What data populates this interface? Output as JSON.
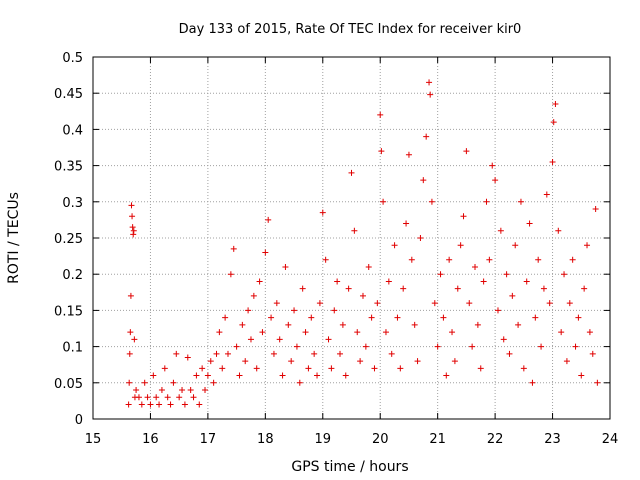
{
  "chart_data": {
    "type": "scatter",
    "title": "Day 133 of 2015, Rate Of TEC Index for receiver kir0",
    "xlabel": "GPS time / hours",
    "ylabel": "ROTI / TECUs",
    "xlim": [
      15,
      24
    ],
    "ylim": [
      0,
      0.5
    ],
    "x_ticks": [
      "15",
      "16",
      "17",
      "18",
      "19",
      "20",
      "21",
      "22",
      "23",
      "24"
    ],
    "y_ticks": [
      "0",
      "0.05",
      "0.1",
      "0.15",
      "0.2",
      "0.25",
      "0.3",
      "0.35",
      "0.4",
      "0.45",
      "0.5"
    ],
    "grid": true,
    "marker": "+",
    "marker_color": "#e00000",
    "series": [
      {
        "name": "ROTI",
        "points": [
          [
            15.62,
            0.02
          ],
          [
            15.63,
            0.05
          ],
          [
            15.64,
            0.09
          ],
          [
            15.65,
            0.12
          ],
          [
            15.66,
            0.17
          ],
          [
            15.67,
            0.295
          ],
          [
            15.68,
            0.28
          ],
          [
            15.69,
            0.265
          ],
          [
            15.7,
            0.255
          ],
          [
            15.71,
            0.26
          ],
          [
            15.72,
            0.11
          ],
          [
            15.73,
            0.03
          ],
          [
            15.75,
            0.04
          ],
          [
            15.8,
            0.03
          ],
          [
            15.85,
            0.02
          ],
          [
            15.9,
            0.05
          ],
          [
            15.95,
            0.03
          ],
          [
            16.0,
            0.02
          ],
          [
            16.05,
            0.06
          ],
          [
            16.1,
            0.03
          ],
          [
            16.15,
            0.02
          ],
          [
            16.2,
            0.04
          ],
          [
            16.25,
            0.07
          ],
          [
            16.3,
            0.03
          ],
          [
            16.35,
            0.02
          ],
          [
            16.4,
            0.05
          ],
          [
            16.45,
            0.09
          ],
          [
            16.5,
            0.03
          ],
          [
            16.55,
            0.04
          ],
          [
            16.6,
            0.02
          ],
          [
            16.65,
            0.085
          ],
          [
            16.7,
            0.04
          ],
          [
            16.75,
            0.03
          ],
          [
            16.8,
            0.06
          ],
          [
            16.85,
            0.02
          ],
          [
            16.9,
            0.07
          ],
          [
            16.95,
            0.04
          ],
          [
            17.0,
            0.06
          ],
          [
            17.05,
            0.08
          ],
          [
            17.1,
            0.05
          ],
          [
            17.15,
            0.09
          ],
          [
            17.2,
            0.12
          ],
          [
            17.25,
            0.07
          ],
          [
            17.3,
            0.14
          ],
          [
            17.35,
            0.09
          ],
          [
            17.4,
            0.2
          ],
          [
            17.45,
            0.235
          ],
          [
            17.5,
            0.1
          ],
          [
            17.55,
            0.06
          ],
          [
            17.6,
            0.13
          ],
          [
            17.65,
            0.08
          ],
          [
            17.7,
            0.15
          ],
          [
            17.75,
            0.11
          ],
          [
            17.8,
            0.17
          ],
          [
            17.85,
            0.07
          ],
          [
            17.9,
            0.19
          ],
          [
            17.95,
            0.12
          ],
          [
            18.0,
            0.23
          ],
          [
            18.05,
            0.275
          ],
          [
            18.1,
            0.14
          ],
          [
            18.15,
            0.09
          ],
          [
            18.2,
            0.16
          ],
          [
            18.25,
            0.11
          ],
          [
            18.3,
            0.06
          ],
          [
            18.35,
            0.21
          ],
          [
            18.4,
            0.13
          ],
          [
            18.45,
            0.08
          ],
          [
            18.5,
            0.15
          ],
          [
            18.55,
            0.1
          ],
          [
            18.6,
            0.05
          ],
          [
            18.65,
            0.18
          ],
          [
            18.7,
            0.12
          ],
          [
            18.75,
            0.07
          ],
          [
            18.8,
            0.14
          ],
          [
            18.85,
            0.09
          ],
          [
            18.9,
            0.06
          ],
          [
            18.95,
            0.16
          ],
          [
            19.0,
            0.285
          ],
          [
            19.05,
            0.22
          ],
          [
            19.1,
            0.11
          ],
          [
            19.15,
            0.07
          ],
          [
            19.2,
            0.15
          ],
          [
            19.25,
            0.19
          ],
          [
            19.3,
            0.09
          ],
          [
            19.35,
            0.13
          ],
          [
            19.4,
            0.06
          ],
          [
            19.45,
            0.18
          ],
          [
            19.5,
            0.34
          ],
          [
            19.55,
            0.26
          ],
          [
            19.6,
            0.12
          ],
          [
            19.65,
            0.08
          ],
          [
            19.7,
            0.17
          ],
          [
            19.75,
            0.1
          ],
          [
            19.8,
            0.21
          ],
          [
            19.85,
            0.14
          ],
          [
            19.9,
            0.07
          ],
          [
            19.95,
            0.16
          ],
          [
            20.0,
            0.42
          ],
          [
            20.02,
            0.37
          ],
          [
            20.05,
            0.3
          ],
          [
            20.1,
            0.12
          ],
          [
            20.15,
            0.19
          ],
          [
            20.2,
            0.09
          ],
          [
            20.25,
            0.24
          ],
          [
            20.3,
            0.14
          ],
          [
            20.35,
            0.07
          ],
          [
            20.4,
            0.18
          ],
          [
            20.45,
            0.27
          ],
          [
            20.5,
            0.365
          ],
          [
            20.55,
            0.22
          ],
          [
            20.6,
            0.13
          ],
          [
            20.65,
            0.08
          ],
          [
            20.7,
            0.25
          ],
          [
            20.75,
            0.33
          ],
          [
            20.8,
            0.39
          ],
          [
            20.85,
            0.465
          ],
          [
            20.87,
            0.448
          ],
          [
            20.9,
            0.3
          ],
          [
            20.95,
            0.16
          ],
          [
            21.0,
            0.1
          ],
          [
            21.05,
            0.2
          ],
          [
            21.1,
            0.14
          ],
          [
            21.15,
            0.06
          ],
          [
            21.2,
            0.22
          ],
          [
            21.25,
            0.12
          ],
          [
            21.3,
            0.08
          ],
          [
            21.35,
            0.18
          ],
          [
            21.4,
            0.24
          ],
          [
            21.45,
            0.28
          ],
          [
            21.5,
            0.37
          ],
          [
            21.55,
            0.16
          ],
          [
            21.6,
            0.1
          ],
          [
            21.65,
            0.21
          ],
          [
            21.7,
            0.13
          ],
          [
            21.75,
            0.07
          ],
          [
            21.8,
            0.19
          ],
          [
            21.85,
            0.3
          ],
          [
            21.9,
            0.22
          ],
          [
            21.95,
            0.35
          ],
          [
            22.0,
            0.33
          ],
          [
            22.05,
            0.15
          ],
          [
            22.1,
            0.26
          ],
          [
            22.15,
            0.11
          ],
          [
            22.2,
            0.2
          ],
          [
            22.25,
            0.09
          ],
          [
            22.3,
            0.17
          ],
          [
            22.35,
            0.24
          ],
          [
            22.4,
            0.13
          ],
          [
            22.45,
            0.3
          ],
          [
            22.5,
            0.07
          ],
          [
            22.55,
            0.19
          ],
          [
            22.6,
            0.27
          ],
          [
            22.65,
            0.05
          ],
          [
            22.7,
            0.14
          ],
          [
            22.75,
            0.22
          ],
          [
            22.8,
            0.1
          ],
          [
            22.85,
            0.18
          ],
          [
            22.9,
            0.31
          ],
          [
            22.95,
            0.16
          ],
          [
            23.0,
            0.355
          ],
          [
            23.02,
            0.41
          ],
          [
            23.05,
            0.435
          ],
          [
            23.1,
            0.26
          ],
          [
            23.15,
            0.12
          ],
          [
            23.2,
            0.2
          ],
          [
            23.25,
            0.08
          ],
          [
            23.3,
            0.16
          ],
          [
            23.35,
            0.22
          ],
          [
            23.4,
            0.1
          ],
          [
            23.45,
            0.14
          ],
          [
            23.5,
            0.06
          ],
          [
            23.55,
            0.18
          ],
          [
            23.6,
            0.24
          ],
          [
            23.65,
            0.12
          ],
          [
            23.7,
            0.09
          ],
          [
            23.75,
            0.29
          ],
          [
            23.78,
            0.05
          ]
        ]
      }
    ]
  }
}
